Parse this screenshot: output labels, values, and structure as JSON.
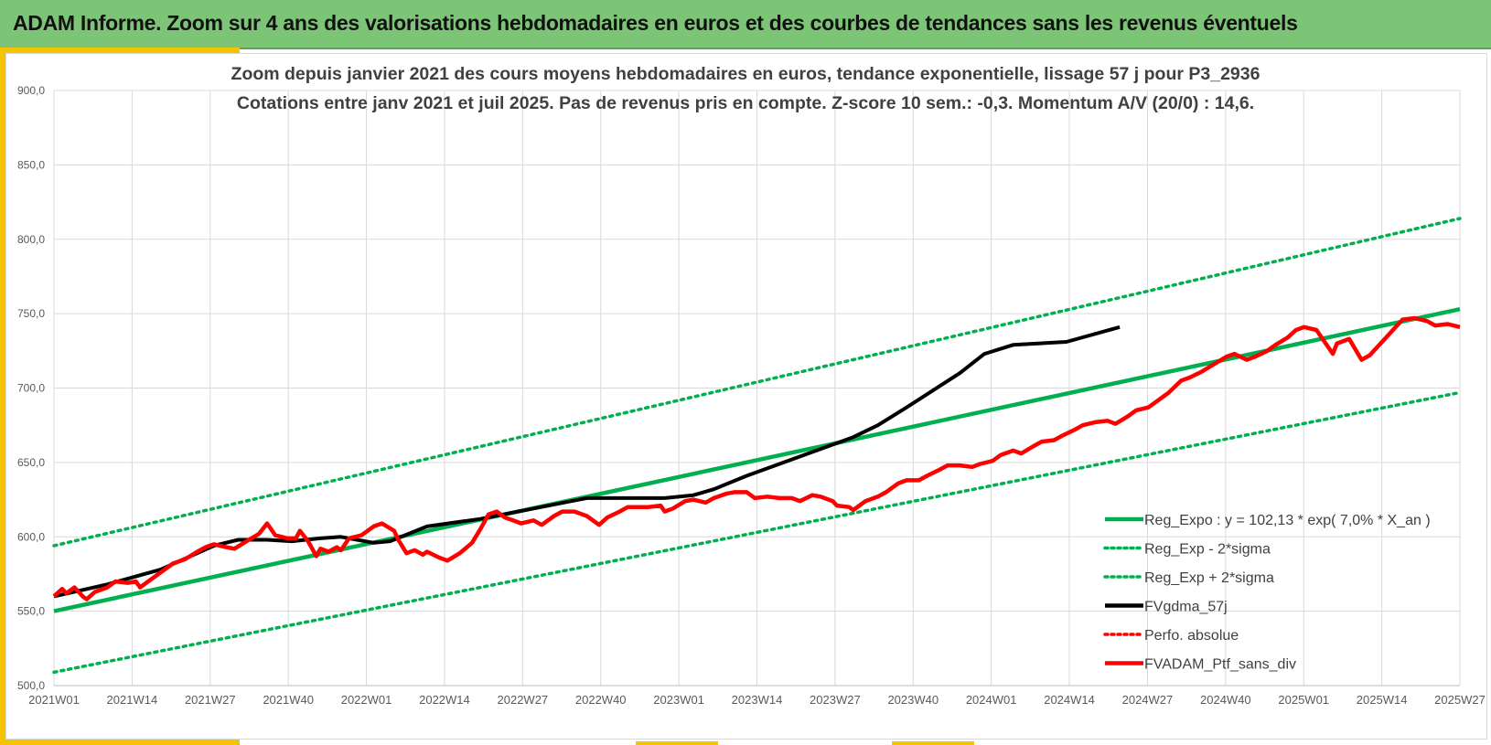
{
  "header": {
    "title": "ADAM Informe. Zoom sur 4 ans des valorisations hebdomadaires en euros et des courbes de tendances sans les revenus éventuels"
  },
  "colors": {
    "header_bg": "#7cc576",
    "accent": "#f5c400",
    "trend": "#00b050",
    "smooth": "#000000",
    "portfolio": "#ff0000"
  },
  "chart_data": {
    "type": "line",
    "title": "Zoom depuis janvier 2021 des cours moyens hebdomadaires  en euros, tendance exponentielle, lissage 57 j pour P3_2936",
    "subtitle": "Cotations entre janv 2021 et juil 2025. Pas de revenus pris en compte. Z-score 10 sem.: -0,3. Momentum A/V (20/0) : 14,6.",
    "xlabel": "",
    "ylabel": "",
    "ylim": [
      500,
      900
    ],
    "y_ticks": [
      "500,0",
      "550,0",
      "600,0",
      "650,0",
      "700,0",
      "750,0",
      "800,0",
      "850,0",
      "900,0"
    ],
    "x_categories": [
      "2021W01",
      "2021W14",
      "2021W27",
      "2021W40",
      "2022W01",
      "2022W14",
      "2022W27",
      "2022W40",
      "2023W01",
      "2023W14",
      "2023W27",
      "2023W40",
      "2024W01",
      "2024W14",
      "2024W27",
      "2024W40",
      "2025W01",
      "2025W14",
      "2025W27"
    ],
    "x_range_weeks": [
      0,
      234
    ],
    "grid": true,
    "legend_position": "bottom-right",
    "series": [
      {
        "name": "Reg_Expo : y = 102,13 * exp( 7,0% *  X_an )",
        "style": "solid",
        "color": "#00b050",
        "points": [
          [
            0,
            550
          ],
          [
            234,
            753
          ]
        ]
      },
      {
        "name": "Reg_Exp - 2*sigma",
        "style": "dotted",
        "color": "#00b050",
        "points": [
          [
            0,
            509
          ],
          [
            234,
            697
          ]
        ]
      },
      {
        "name": "Reg_Exp + 2*sigma",
        "style": "dotted",
        "color": "#00b050",
        "points": [
          [
            0,
            594
          ],
          [
            234,
            814
          ]
        ]
      },
      {
        "name": "FVgdma_57j",
        "style": "solid",
        "color": "#000000",
        "points": [
          [
            0,
            560
          ],
          [
            13,
            568
          ],
          [
            26,
            578
          ],
          [
            39,
            594
          ],
          [
            45,
            598
          ],
          [
            52,
            598
          ],
          [
            58,
            597
          ],
          [
            65,
            599
          ],
          [
            70,
            600
          ],
          [
            78,
            596
          ],
          [
            82,
            597
          ],
          [
            91,
            607
          ],
          [
            104,
            612
          ],
          [
            117,
            619
          ],
          [
            130,
            626
          ],
          [
            143,
            626
          ],
          [
            149,
            626
          ],
          [
            156,
            628
          ],
          [
            161,
            632
          ],
          [
            169,
            641
          ],
          [
            182,
            654
          ],
          [
            195,
            667
          ],
          [
            201,
            675
          ],
          [
            208,
            687
          ],
          [
            221,
            710
          ],
          [
            227,
            723
          ],
          [
            234,
            729
          ],
          [
            247,
            731
          ],
          [
            260,
            741
          ]
        ]
      },
      {
        "name": "Perfo. absolue",
        "style": "dotted",
        "color": "#ff0000",
        "points": []
      },
      {
        "name": "FVADAM_Ptf_sans_div",
        "style": "solid",
        "color": "#ff0000",
        "points": [
          [
            0,
            560
          ],
          [
            2,
            565
          ],
          [
            3,
            562
          ],
          [
            5,
            566
          ],
          [
            7,
            560
          ],
          [
            8,
            558
          ],
          [
            10,
            563
          ],
          [
            13,
            566
          ],
          [
            15,
            570
          ],
          [
            18,
            569
          ],
          [
            20,
            570
          ],
          [
            21,
            566
          ],
          [
            24,
            572
          ],
          [
            26,
            576
          ],
          [
            29,
            582
          ],
          [
            32,
            585
          ],
          [
            35,
            590
          ],
          [
            37,
            593
          ],
          [
            39,
            595
          ],
          [
            42,
            593
          ],
          [
            44,
            592
          ],
          [
            47,
            597
          ],
          [
            50,
            602
          ],
          [
            52,
            609
          ],
          [
            54,
            601
          ],
          [
            57,
            599
          ],
          [
            59,
            599
          ],
          [
            60,
            604
          ],
          [
            62,
            597
          ],
          [
            64,
            587
          ],
          [
            65,
            592
          ],
          [
            67,
            590
          ],
          [
            69,
            593
          ],
          [
            70,
            591
          ],
          [
            72,
            599
          ],
          [
            75,
            601
          ],
          [
            78,
            607
          ],
          [
            80,
            609
          ],
          [
            83,
            604
          ],
          [
            84,
            598
          ],
          [
            86,
            589
          ],
          [
            88,
            591
          ],
          [
            90,
            588
          ],
          [
            91,
            590
          ],
          [
            94,
            586
          ],
          [
            96,
            584
          ],
          [
            99,
            589
          ],
          [
            102,
            596
          ],
          [
            104,
            605
          ],
          [
            106,
            615
          ],
          [
            108,
            617
          ],
          [
            110,
            613
          ],
          [
            112,
            611
          ],
          [
            114,
            609
          ],
          [
            117,
            611
          ],
          [
            119,
            608
          ],
          [
            122,
            614
          ],
          [
            124,
            617
          ],
          [
            127,
            617
          ],
          [
            130,
            614
          ],
          [
            133,
            608
          ],
          [
            135,
            613
          ],
          [
            138,
            617
          ],
          [
            140,
            620
          ],
          [
            143,
            620
          ],
          [
            145,
            620
          ],
          [
            148,
            621
          ],
          [
            149,
            617
          ],
          [
            151,
            619
          ],
          [
            154,
            624
          ],
          [
            156,
            625
          ],
          [
            159,
            623
          ],
          [
            161,
            626
          ],
          [
            164,
            629
          ],
          [
            166,
            630
          ],
          [
            169,
            630
          ],
          [
            171,
            626
          ],
          [
            174,
            627
          ],
          [
            177,
            626
          ],
          [
            180,
            626
          ],
          [
            182,
            624
          ],
          [
            185,
            628
          ],
          [
            187,
            627
          ],
          [
            190,
            624
          ],
          [
            191,
            621
          ],
          [
            194,
            620
          ],
          [
            195,
            618
          ],
          [
            198,
            624
          ],
          [
            201,
            627
          ],
          [
            203,
            630
          ],
          [
            206,
            636
          ],
          [
            208,
            638
          ],
          [
            211,
            638
          ],
          [
            213,
            641
          ],
          [
            216,
            645
          ],
          [
            218,
            648
          ],
          [
            221,
            648
          ],
          [
            224,
            647
          ],
          [
            226,
            649
          ],
          [
            229,
            651
          ],
          [
            231,
            655
          ],
          [
            234,
            658
          ],
          [
            236,
            656
          ],
          [
            239,
            661
          ],
          [
            241,
            664
          ],
          [
            244,
            665
          ],
          [
            246,
            668
          ],
          [
            249,
            672
          ],
          [
            251,
            675
          ],
          [
            254,
            677
          ],
          [
            257,
            678
          ],
          [
            259,
            676
          ],
          [
            262,
            681
          ],
          [
            264,
            685
          ],
          [
            267,
            687
          ],
          [
            270,
            693
          ],
          [
            272,
            697
          ],
          [
            275,
            705
          ],
          [
            277,
            707
          ],
          [
            280,
            711
          ],
          [
            283,
            716
          ],
          [
            286,
            721
          ],
          [
            288,
            723
          ],
          [
            291,
            719
          ],
          [
            293,
            721
          ],
          [
            296,
            725
          ],
          [
            298,
            729
          ],
          [
            301,
            734
          ],
          [
            303,
            739
          ],
          [
            305,
            741
          ],
          [
            308,
            739
          ],
          [
            310,
            731
          ],
          [
            312,
            723
          ],
          [
            313,
            730
          ],
          [
            316,
            733
          ],
          [
            319,
            719
          ],
          [
            321,
            722
          ],
          [
            324,
            731
          ],
          [
            327,
            740
          ],
          [
            329,
            746
          ],
          [
            332,
            747
          ],
          [
            335,
            745
          ],
          [
            337,
            742
          ],
          [
            340,
            743
          ],
          [
            343,
            741
          ]
        ]
      }
    ]
  }
}
